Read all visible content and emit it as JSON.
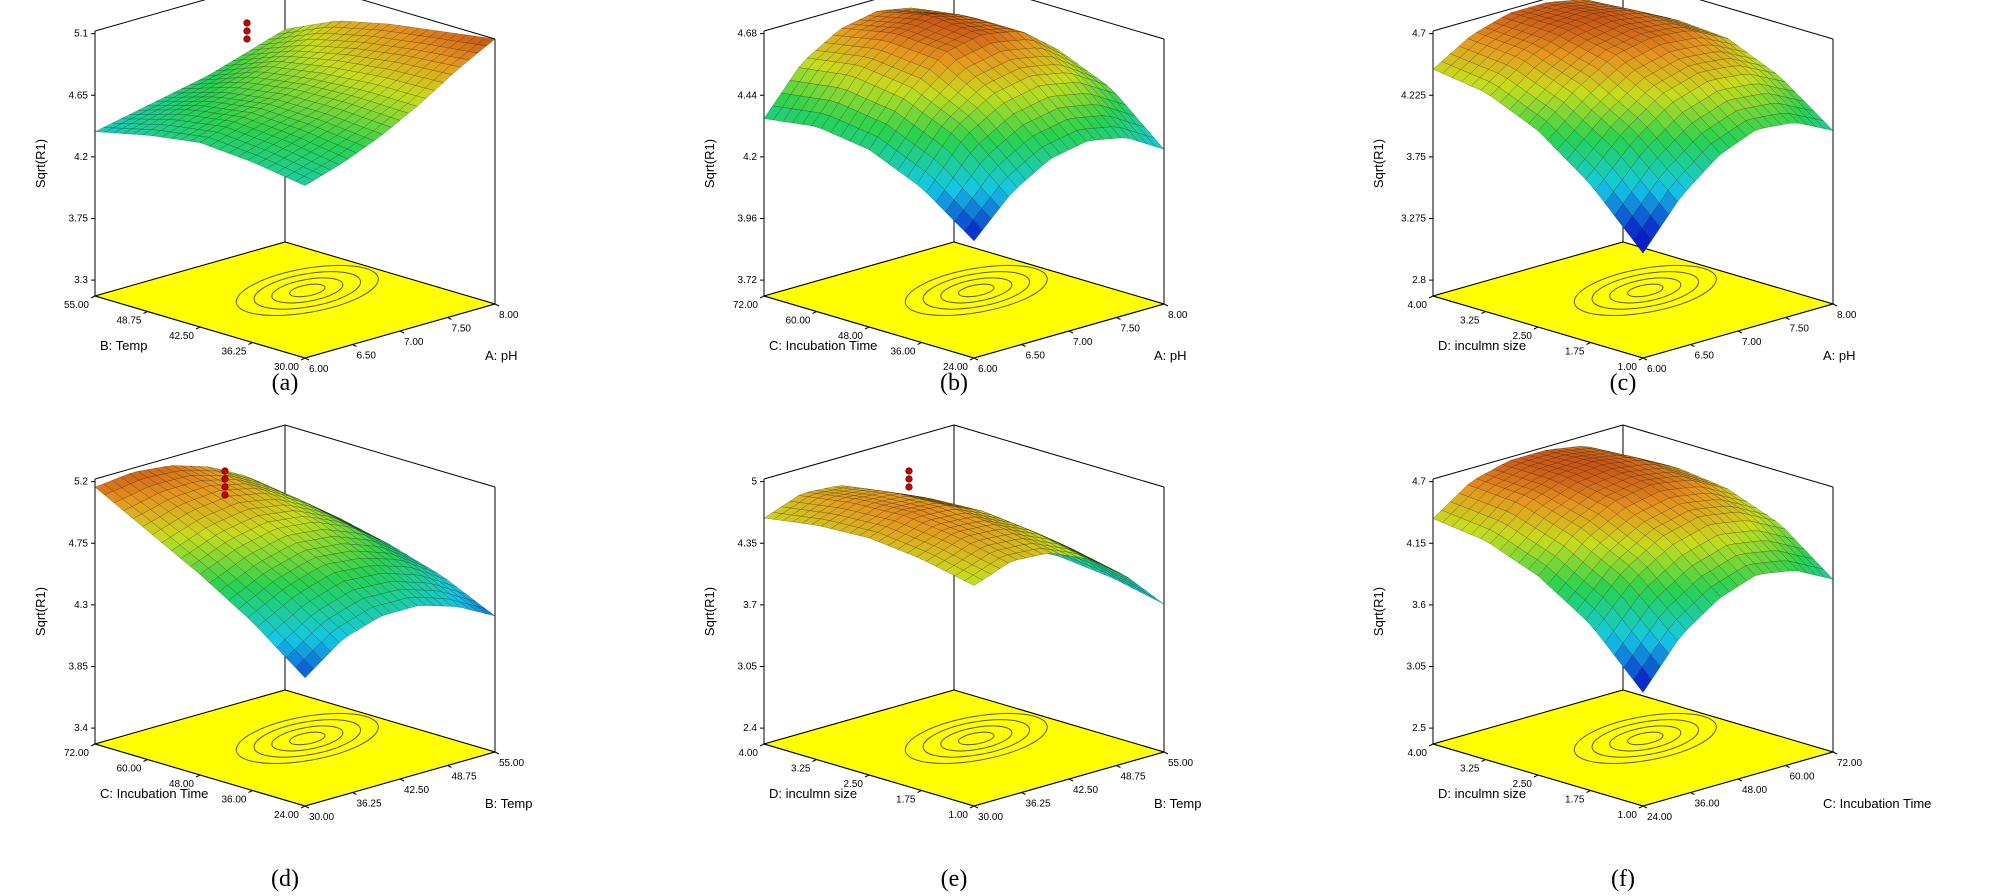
{
  "chart_data": [
    {
      "type": "surface3d",
      "panel_label": "(a)",
      "zlabel": "Sqrt(R1)",
      "zticks": [
        "3.3",
        "3.75",
        "4.2",
        "4.65",
        "5.1"
      ],
      "xlabel": "A: pH",
      "xticks": [
        "6.00",
        "6.50",
        "7.00",
        "7.50",
        "8.00"
      ],
      "ylabel": "B: Temp",
      "yticks": [
        "30.00",
        "36.25",
        "42.50",
        "48.75",
        "55.00"
      ],
      "zlim": [
        3.3,
        5.1
      ],
      "surface": [
        [
          3.95,
          4.1,
          4.3,
          4.55,
          4.85,
          5.1
        ],
        [
          4.05,
          4.2,
          4.35,
          4.55,
          4.8,
          5.0
        ],
        [
          4.1,
          4.25,
          4.35,
          4.5,
          4.7,
          4.9
        ],
        [
          4.0,
          4.15,
          4.25,
          4.4,
          4.55,
          4.75
        ],
        [
          3.85,
          3.95,
          4.05,
          4.15,
          4.3,
          4.45
        ]
      ],
      "design_points_count": 3
    },
    {
      "type": "surface3d",
      "panel_label": "(b)",
      "zlabel": "Sqrt(R1)",
      "zticks": [
        "3.72",
        "3.96",
        "4.2",
        "4.44",
        "4.68"
      ],
      "xlabel": "A: pH",
      "xticks": [
        "6.00",
        "6.50",
        "7.00",
        "7.50",
        "8.00"
      ],
      "ylabel": "C: Incubation Time",
      "yticks": [
        "24.00",
        "36.00",
        "48.00",
        "60.00",
        "72.00"
      ],
      "zlim": [
        3.72,
        4.68
      ],
      "surface": [
        [
          3.7,
          3.95,
          4.1,
          4.15,
          4.1,
          3.95
        ],
        [
          3.95,
          4.25,
          4.4,
          4.45,
          4.4,
          4.25
        ],
        [
          4.1,
          4.4,
          4.6,
          4.65,
          4.6,
          4.4
        ],
        [
          4.15,
          4.45,
          4.62,
          4.68,
          4.6,
          4.4
        ],
        [
          4.1,
          4.4,
          4.55,
          4.6,
          4.55,
          4.35
        ]
      ],
      "design_points_count": 0
    },
    {
      "type": "surface3d",
      "panel_label": "(c)",
      "zlabel": "Sqrt(R1)",
      "zticks": [
        "2.8",
        "3.275",
        "3.75",
        "4.225",
        "4.7"
      ],
      "xlabel": "A: pH",
      "xticks": [
        "6.00",
        "6.50",
        "7.00",
        "7.50",
        "8.00"
      ],
      "ylabel": "D: inculmn size",
      "yticks": [
        "1.00",
        "1.75",
        "2.50",
        "3.25",
        "4.00"
      ],
      "zlim": [
        2.8,
        4.7
      ],
      "surface": [
        [
          2.6,
          3.2,
          3.6,
          3.8,
          3.75,
          3.5
        ],
        [
          3.3,
          3.8,
          4.15,
          4.3,
          4.25,
          4.0
        ],
        [
          3.8,
          4.2,
          4.5,
          4.6,
          4.55,
          4.3
        ],
        [
          4.1,
          4.45,
          4.65,
          4.7,
          4.6,
          4.35
        ],
        [
          4.2,
          4.5,
          4.65,
          4.65,
          4.55,
          4.25
        ]
      ],
      "design_points_count": 0
    },
    {
      "type": "surface3d",
      "panel_label": "(d)",
      "zlabel": "Sqrt(R1)",
      "zticks": [
        "3.4",
        "3.85",
        "4.3",
        "4.75",
        "5.2"
      ],
      "xlabel": "B: Temp",
      "xticks": [
        "30.00",
        "36.25",
        "42.50",
        "48.75",
        "55.00"
      ],
      "ylabel": "C: Incubation Time",
      "yticks": [
        "24.00",
        "36.00",
        "48.00",
        "60.00",
        "72.00"
      ],
      "zlim": [
        3.4,
        5.2
      ],
      "surface": [
        [
          3.5,
          3.85,
          4.0,
          4.0,
          3.85,
          3.6
        ],
        [
          4.0,
          4.25,
          4.4,
          4.35,
          4.2,
          3.9
        ],
        [
          4.4,
          4.6,
          4.7,
          4.65,
          4.45,
          4.1
        ],
        [
          4.75,
          4.9,
          4.95,
          4.85,
          4.6,
          4.25
        ],
        [
          5.1,
          5.15,
          5.1,
          4.95,
          4.7,
          4.3
        ]
      ],
      "design_points_count": 4
    },
    {
      "type": "surface3d",
      "panel_label": "(e)",
      "zlabel": "Sqrt(R1)",
      "zticks": [
        "2.4",
        "3.05",
        "3.7",
        "4.35",
        "5"
      ],
      "xlabel": "B: Temp",
      "xticks": [
        "30.00",
        "36.25",
        "42.50",
        "48.75",
        "55.00"
      ],
      "ylabel": "D: inculmn size",
      "yticks": [
        "1.00",
        "1.75",
        "2.50",
        "3.25",
        "4.00"
      ],
      "zlim": [
        2.4,
        5.0
      ],
      "surface": [
        [
          4.2,
          4.45,
          4.4,
          4.1,
          3.6,
          2.9
        ],
        [
          4.4,
          4.65,
          4.6,
          4.3,
          3.8,
          3.1
        ],
        [
          4.5,
          4.75,
          4.7,
          4.4,
          3.9,
          3.2
        ],
        [
          4.45,
          4.7,
          4.65,
          4.35,
          3.85,
          3.15
        ],
        [
          4.3,
          4.55,
          4.5,
          4.2,
          3.7,
          3.0
        ]
      ],
      "design_points_count": 3
    },
    {
      "type": "surface3d",
      "panel_label": "(f)",
      "zlabel": "Sqrt(R1)",
      "zticks": [
        "2.5",
        "3.05",
        "3.6",
        "4.15",
        "4.7"
      ],
      "xlabel": "C: Incubation Time",
      "xticks": [
        "24.00",
        "36.00",
        "48.00",
        "60.00",
        "72.00"
      ],
      "ylabel": "D: inculmn size",
      "yticks": [
        "1.00",
        "1.75",
        "2.50",
        "3.25",
        "4.00"
      ],
      "zlim": [
        2.5,
        4.7
      ],
      "surface": [
        [
          2.4,
          3.1,
          3.5,
          3.7,
          3.6,
          3.3
        ],
        [
          3.2,
          3.8,
          4.15,
          4.3,
          4.2,
          3.9
        ],
        [
          3.7,
          4.2,
          4.5,
          4.6,
          4.5,
          4.2
        ],
        [
          4.0,
          4.45,
          4.65,
          4.7,
          4.6,
          4.3
        ],
        [
          4.1,
          4.5,
          4.65,
          4.65,
          4.55,
          4.2
        ]
      ],
      "design_points_count": 0
    }
  ]
}
